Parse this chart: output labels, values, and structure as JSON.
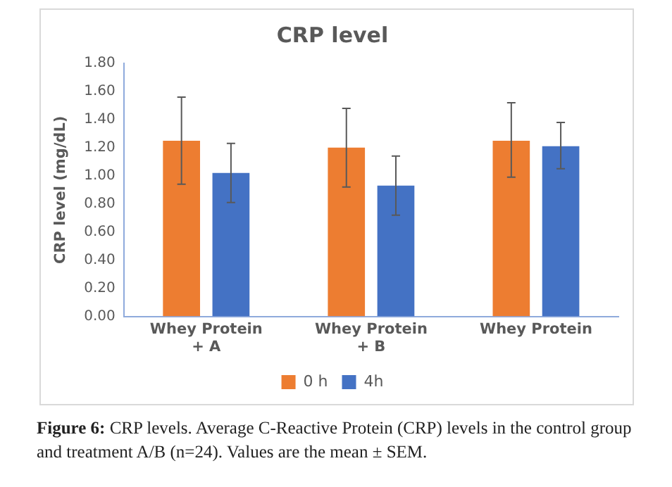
{
  "chart_data": {
    "type": "bar",
    "title": "CRP level",
    "ylabel": "CRP level (mg/dL)",
    "categories": [
      "Whey Protein\n+ A",
      "Whey Protein\n+ B",
      "Whey Protein"
    ],
    "series": [
      {
        "name": "0 h",
        "color": "#ed7d31",
        "values": [
          1.25,
          1.2,
          1.25
        ],
        "errors": [
          [
            0.94,
            1.56
          ],
          [
            0.92,
            1.48
          ],
          [
            0.99,
            1.52
          ]
        ]
      },
      {
        "name": "4h",
        "color": "#4472c4",
        "values": [
          1.02,
          0.93,
          1.21
        ],
        "errors": [
          [
            0.81,
            1.23
          ],
          [
            0.72,
            1.14
          ],
          [
            1.05,
            1.38
          ]
        ]
      }
    ],
    "ylim": [
      0,
      1.8
    ],
    "yticks": [
      {
        "value": 0,
        "label": "0.00"
      },
      {
        "value": 0.2,
        "label": "0.20"
      },
      {
        "value": 0.4,
        "label": "0.40"
      },
      {
        "value": 0.6,
        "label": "0.60"
      },
      {
        "value": 0.8,
        "label": "0.80"
      },
      {
        "value": 1,
        "label": "1.00"
      },
      {
        "value": 1.2,
        "label": "1.20"
      },
      {
        "value": 1.4,
        "label": "1.40"
      },
      {
        "value": 1.6,
        "label": "1.60"
      },
      {
        "value": 1.8,
        "label": "1.80"
      }
    ],
    "grid": false,
    "legend": "bottom",
    "annotations": [
      "Figure 6: CRP levels. Average C-Reactive Protein (CRP) levels in the control group and treatment A/B (n=24). Values are the mean ± SEM."
    ]
  }
}
